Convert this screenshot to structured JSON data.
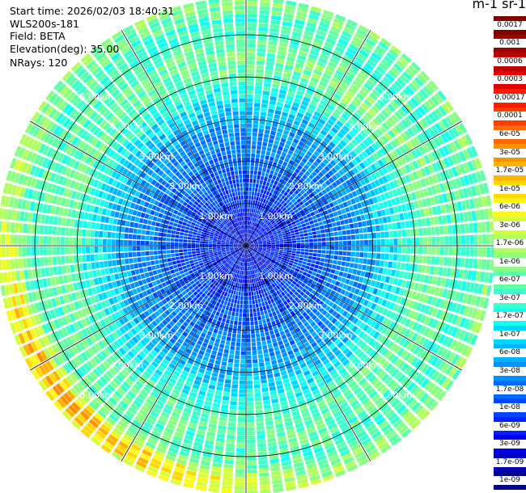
{
  "header": {
    "start_time": "Start time: 2026/02/03 18:40:31",
    "instrument": "WLS200s-181",
    "field": "Field: BETA",
    "elevation": "Elevation(deg): 35.00",
    "nrays": "NRays: 120"
  },
  "colorbar": {
    "unit_label": "m-1 sr-1",
    "labels": [
      "0.0017",
      "0.001",
      "0.0006",
      "0.0003",
      "0.00017",
      "0.0001",
      "6e-05",
      "3e-05",
      "1.7e-05",
      "1e-05",
      "6e-06",
      "3e-06",
      "1.7e-06",
      "1e-06",
      "6e-07",
      "3e-07",
      "1.7e-07",
      "1e-07",
      "6e-08",
      "3e-08",
      "1.7e-08",
      "1e-08",
      "6e-09",
      "3e-09",
      "1.7e-09",
      "1e-09"
    ],
    "colors": [
      "#7f0000",
      "#a00000",
      "#c00000",
      "#e00000",
      "#ff1a00",
      "#ff3c00",
      "#ff6a00",
      "#ff9000",
      "#ffb300",
      "#ffd800",
      "#fdf71a",
      "#d6ff3a",
      "#b0ff5e",
      "#8aff83",
      "#62ffa7",
      "#3bffcd",
      "#14fff0",
      "#00d8ff",
      "#00b4ff",
      "#0090ff",
      "#006cff",
      "#0048ff",
      "#0024ff",
      "#0000f0",
      "#0000b8",
      "#00008a"
    ]
  },
  "chart_data": {
    "type": "heatmap",
    "projection": "polar PPI scan",
    "nrays": 120,
    "range_rings_km": [
      1.0,
      2.0,
      3.0,
      4.0,
      5.0
    ],
    "ring_labels": [
      "1.00km",
      "2.00km",
      "3.00km",
      "4.00km",
      "5.00km"
    ],
    "max_range_km": 5.9,
    "scale": "log",
    "field": "BETA",
    "value_range": [
      1e-09,
      0.0017
    ],
    "profile_by_range_km": [
      [
        0.0,
        5e-09
      ],
      [
        1.0,
        8e-09
      ],
      [
        2.0,
        2e-08
      ],
      [
        2.8,
        4e-08
      ],
      [
        3.5,
        1.5e-07
      ],
      [
        4.2,
        6e-07
      ],
      [
        4.8,
        5e-07
      ],
      [
        5.3,
        3e-07
      ],
      [
        5.7,
        8e-07
      ]
    ],
    "sector_enhancements": [
      {
        "azimuth_deg": 225,
        "range_km": 5.6,
        "value": 2e-05
      },
      {
        "azimuth_deg": 40,
        "range_km": 4.4,
        "value": 8e-07
      }
    ]
  }
}
